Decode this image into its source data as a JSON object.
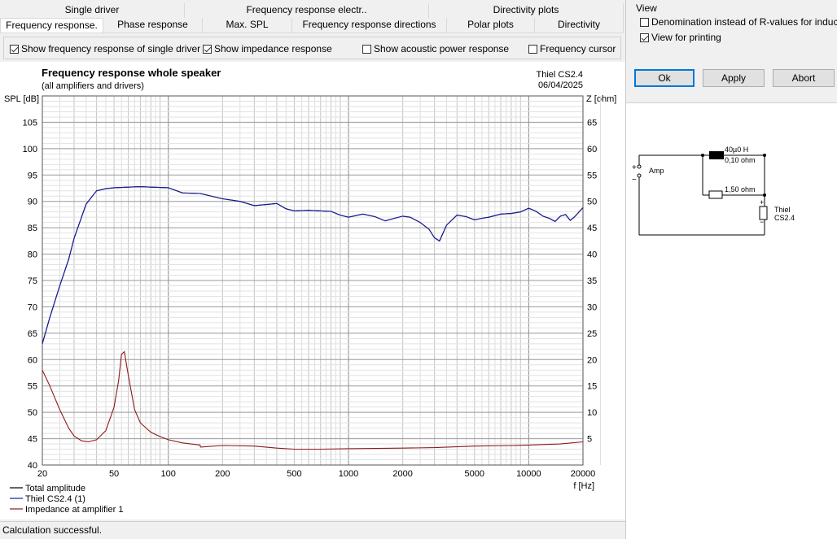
{
  "tabs_top": [
    "Single driver",
    "Frequency response electr..",
    "Directivity plots"
  ],
  "tabs_bottom": [
    "Frequency response.",
    "Phase response",
    "Max. SPL",
    "Frequency response directions",
    "Polar plots",
    "Directivity"
  ],
  "checks": [
    {
      "label": "Show frequency response of single driver",
      "checked": true
    },
    {
      "label": "Show impedance response",
      "checked": true
    },
    {
      "label": "Show acoustic power response",
      "checked": false
    },
    {
      "label": "Frequency cursor",
      "checked": false
    }
  ],
  "chart": {
    "title": "Frequency response whole speaker",
    "subtitle": "(all amplifiers and drivers)",
    "speaker_name": "Thiel CS2.4",
    "date": "06/04/2025",
    "left_axis_label": "SPL [dB]",
    "right_axis_label": "Z [ohm]",
    "x_axis_label": "f [Hz]"
  },
  "legend": [
    {
      "label": "Total amplitude",
      "color": "#000000"
    },
    {
      "label": "Thiel CS2.4 (1)",
      "color": "#1a1aa0"
    },
    {
      "label": "Impedance at amplifier 1",
      "color": "#8b1a1a"
    }
  ],
  "chart_data": {
    "type": "line",
    "title": "Frequency response whole speaker",
    "xlabel": "f [Hz]",
    "ylabel": "SPL [dB]",
    "y2label": "Z [ohm]",
    "xscale": "log",
    "xlim": [
      20,
      20000
    ],
    "ylim": [
      40,
      110
    ],
    "y2lim": [
      0,
      70
    ],
    "xticks": [
      20,
      50,
      100,
      200,
      500,
      1000,
      2000,
      5000,
      10000,
      20000
    ],
    "xticklabels": [
      "20",
      "50",
      "100",
      "200",
      "500",
      "1000",
      "2000",
      "5000",
      "10000",
      "20000"
    ],
    "yticks": [
      40,
      45,
      50,
      55,
      60,
      65,
      70,
      75,
      80,
      85,
      90,
      95,
      100,
      105
    ],
    "y2ticks": [
      5,
      10,
      15,
      20,
      25,
      30,
      35,
      40,
      45,
      50,
      55,
      60,
      65
    ],
    "grid": true,
    "legend_position": "bottom-left",
    "series": [
      {
        "name": "Total amplitude",
        "axis": "left",
        "color": "#000000",
        "x": [
          20,
          22,
          25,
          28,
          30,
          35,
          40,
          45,
          50,
          60,
          70,
          80,
          100,
          120,
          150,
          200,
          250,
          300,
          350,
          400,
          450,
          500,
          600,
          700,
          800,
          900,
          1000,
          1200,
          1400,
          1600,
          1800,
          2000,
          2200,
          2500,
          2800,
          3000,
          3200,
          3500,
          4000,
          4500,
          5000,
          5500,
          6000,
          7000,
          8000,
          9000,
          10000,
          11000,
          12000,
          13000,
          14000,
          15000,
          16000,
          17000,
          18000,
          19000,
          20000
        ],
        "y": [
          63,
          68,
          74,
          79,
          83,
          89.5,
          92,
          92.4,
          92.6,
          92.7,
          92.8,
          92.7,
          92.6,
          91.6,
          91.5,
          90.5,
          90,
          89.2,
          89.4,
          89.6,
          88.6,
          88.2,
          88.3,
          88.2,
          88.1,
          87.4,
          87,
          87.6,
          87.1,
          86.3,
          86.8,
          87.2,
          87,
          86,
          84.7,
          83.1,
          82.5,
          85.5,
          87.4,
          87.1,
          86.5,
          86.8,
          87,
          87.6,
          87.7,
          88,
          88.7,
          88.1,
          87.2,
          86.8,
          86.2,
          87.2,
          87.5,
          86.4,
          87.1,
          88,
          88.8
        ]
      },
      {
        "name": "Thiel CS2.4 (1)",
        "axis": "left",
        "color": "#1a1aa0",
        "x": [
          20,
          22,
          25,
          28,
          30,
          35,
          40,
          45,
          50,
          60,
          70,
          80,
          100,
          120,
          150,
          200,
          250,
          300,
          350,
          400,
          450,
          500,
          600,
          700,
          800,
          900,
          1000,
          1200,
          1400,
          1600,
          1800,
          2000,
          2200,
          2500,
          2800,
          3000,
          3200,
          3500,
          4000,
          4500,
          5000,
          5500,
          6000,
          7000,
          8000,
          9000,
          10000,
          11000,
          12000,
          13000,
          14000,
          15000,
          16000,
          17000,
          18000,
          19000,
          20000
        ],
        "y": [
          63,
          68,
          74,
          79,
          83,
          89.5,
          92,
          92.4,
          92.6,
          92.7,
          92.8,
          92.7,
          92.6,
          91.6,
          91.5,
          90.5,
          90,
          89.2,
          89.4,
          89.6,
          88.6,
          88.2,
          88.3,
          88.2,
          88.1,
          87.4,
          87,
          87.6,
          87.1,
          86.3,
          86.8,
          87.2,
          87,
          86,
          84.7,
          83.1,
          82.5,
          85.5,
          87.4,
          87.1,
          86.5,
          86.8,
          87,
          87.6,
          87.7,
          88,
          88.7,
          88.1,
          87.2,
          86.8,
          86.2,
          87.2,
          87.5,
          86.4,
          87.1,
          88,
          88.8
        ]
      },
      {
        "name": "Impedance at amplifier 1",
        "axis": "right",
        "color": "#8b1a1a",
        "x": [
          20,
          22,
          25,
          28,
          30,
          33,
          36,
          40,
          45,
          50,
          53,
          55,
          57,
          60,
          65,
          70,
          80,
          90,
          100,
          120,
          150,
          151,
          200,
          300,
          400,
          500,
          700,
          1000,
          2000,
          3000,
          5000,
          8000,
          10000,
          15000,
          20000
        ],
        "y": [
          18,
          15,
          10.5,
          7,
          5.5,
          4.6,
          4.4,
          4.8,
          6.5,
          11,
          16,
          21,
          21.5,
          17,
          10.5,
          8,
          6.2,
          5.4,
          4.8,
          4.2,
          3.8,
          3.4,
          3.7,
          3.6,
          3.2,
          3,
          3,
          3.1,
          3.2,
          3.3,
          3.6,
          3.7,
          3.8,
          4,
          4.4
        ]
      }
    ]
  },
  "view": {
    "group_label": "View",
    "options": [
      {
        "label": "Denomination instead of R-values for inductors",
        "checked": false
      },
      {
        "label": "View for printing",
        "checked": true
      }
    ]
  },
  "buttons": {
    "ok": "Ok",
    "apply": "Apply",
    "abort": "Abort"
  },
  "schematic": {
    "amp_label": "Amp",
    "plus_sign": "+",
    "minus_sign": "−",
    "inductor_value": "40µ0 H",
    "inductor_resistance": "0,10 ohm",
    "resistor_value": "1,50 ohm",
    "driver_name": "Thiel",
    "driver_model": "CS2.4"
  },
  "status": "Calculation successful."
}
